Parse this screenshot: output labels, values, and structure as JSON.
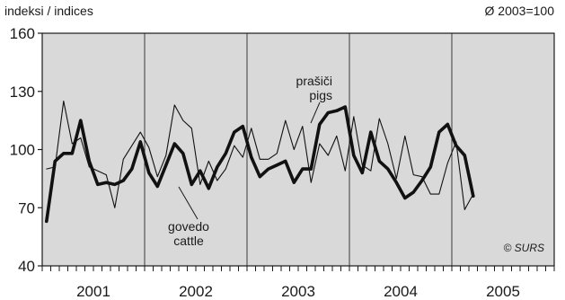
{
  "chart_data": {
    "type": "line",
    "ylabel": "indeksi / indices",
    "base_note": "Ø 2003=100",
    "credit": "© SURS",
    "ylim": [
      40,
      160
    ],
    "yticks": [
      "40",
      "70",
      "100",
      "130",
      "160"
    ],
    "year_labels": [
      "2001",
      "2002",
      "2003",
      "2004",
      "2005"
    ],
    "grid": "vertical lines at year boundaries",
    "background_color": "#d9d9d9",
    "annotations": {
      "pigs": [
        "prašiči",
        "pigs"
      ],
      "cattle": [
        "govedo",
        "cattle"
      ]
    },
    "x_start": "2001-01",
    "series": [
      {
        "key": "pigs",
        "style": "thin",
        "values": [
          90,
          91,
          125,
          103,
          106,
          91,
          89,
          87,
          70,
          95,
          102,
          109,
          101,
          86,
          97,
          123,
          115,
          111,
          82,
          94,
          84,
          90,
          102,
          96,
          111,
          95,
          95,
          98,
          115,
          100,
          112,
          83,
          103,
          97,
          107,
          89,
          117,
          92,
          89,
          116,
          103,
          85,
          107,
          87,
          86,
          77,
          77,
          93,
          104,
          69,
          77
        ]
      },
      {
        "key": "cattle",
        "style": "bold",
        "values": [
          63,
          94,
          98,
          98,
          115,
          94,
          82,
          83,
          82,
          84,
          90,
          104,
          88,
          81,
          92,
          103,
          98,
          82,
          89,
          80,
          91,
          98,
          109,
          112,
          96,
          86,
          90,
          92,
          94,
          83,
          90,
          90,
          113,
          119,
          120,
          122,
          97,
          88,
          109,
          94,
          90,
          83,
          75,
          78,
          84,
          91,
          109,
          113,
          102,
          97,
          76
        ]
      }
    ]
  }
}
